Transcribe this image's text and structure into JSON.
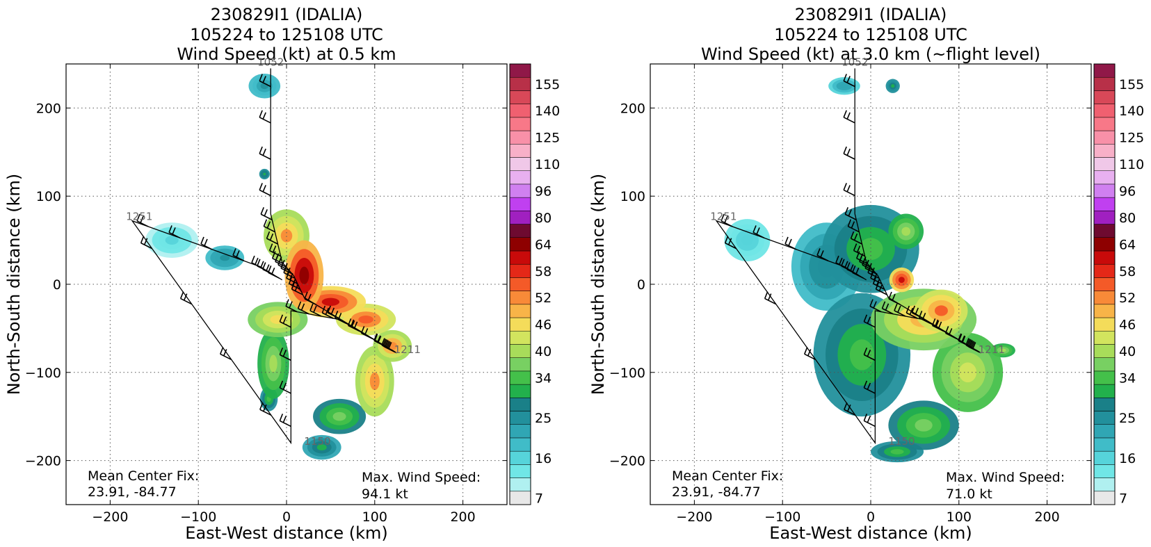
{
  "chart_data": [
    {
      "type": "heatmap",
      "title_lines": [
        "230829I1 (IDALIA)",
        "105224 to 125108 UTC",
        "Wind Speed (kt) at 0.5 km"
      ],
      "xlabel": "East-West distance (km)",
      "ylabel": "North-South distance (km)",
      "xlim": [
        -250,
        250
      ],
      "ylim": [
        -250,
        250
      ],
      "xticks": [
        -200,
        -100,
        0,
        100,
        200
      ],
      "yticks": [
        -200,
        -100,
        0,
        100,
        200
      ],
      "grid": true,
      "track": [
        [
          -18,
          245
        ],
        [
          -18,
          80
        ],
        [
          -5,
          25
        ],
        [
          8,
          10
        ],
        [
          20,
          -15
        ],
        [
          125,
          -78
        ],
        [
          120,
          -75
        ],
        [
          60,
          -40
        ],
        [
          5,
          -30
        ],
        [
          5,
          -180
        ],
        [
          -175,
          72
        ],
        [
          -30,
          20
        ],
        [
          -5,
          5
        ]
      ],
      "time_labels": [
        {
          "text": "1052",
          "x": -33,
          "y": 248
        },
        {
          "text": "1251",
          "x": -182,
          "y": 73
        },
        {
          "text": "1211",
          "x": 122,
          "y": -78
        },
        {
          "text": "1150",
          "x": 20,
          "y": -182
        }
      ],
      "annotations": {
        "center_label": "Mean Center Fix:",
        "center_value": "23.91, -84.77",
        "max_label": "Max. Wind Speed:",
        "max_value": "94.1 kt"
      },
      "wind_blobs": [
        {
          "x": -130,
          "y": 50,
          "rx": 30,
          "ry": 20,
          "v": 18
        },
        {
          "x": -70,
          "y": 30,
          "rx": 22,
          "ry": 14,
          "v": 28
        },
        {
          "x": -25,
          "y": 225,
          "rx": 18,
          "ry": 14,
          "v": 27
        },
        {
          "x": -25,
          "y": 125,
          "rx": 6,
          "ry": 6,
          "v": 36
        },
        {
          "x": 0,
          "y": 55,
          "rx": 26,
          "ry": 30,
          "v": 56
        },
        {
          "x": 20,
          "y": 10,
          "rx": 22,
          "ry": 40,
          "v": 72
        },
        {
          "x": 50,
          "y": -20,
          "rx": 40,
          "ry": 18,
          "v": 66
        },
        {
          "x": 90,
          "y": -40,
          "rx": 34,
          "ry": 18,
          "v": 62
        },
        {
          "x": 120,
          "y": -70,
          "rx": 22,
          "ry": 18,
          "v": 58
        },
        {
          "x": -10,
          "y": -40,
          "rx": 34,
          "ry": 20,
          "v": 52
        },
        {
          "x": -15,
          "y": -90,
          "rx": 18,
          "ry": 40,
          "v": 44
        },
        {
          "x": 100,
          "y": -110,
          "rx": 22,
          "ry": 40,
          "v": 56
        },
        {
          "x": 60,
          "y": -150,
          "rx": 30,
          "ry": 20,
          "v": 42
        },
        {
          "x": 40,
          "y": -185,
          "rx": 22,
          "ry": 14,
          "v": 34
        },
        {
          "x": -20,
          "y": -130,
          "rx": 10,
          "ry": 14,
          "v": 37
        }
      ]
    },
    {
      "type": "heatmap",
      "title_lines": [
        "230829I1 (IDALIA)",
        "105224 to 125108 UTC",
        "Wind Speed (kt) at 3.0 km (~flight level)"
      ],
      "xlabel": "East-West distance (km)",
      "ylabel": "North-South distance (km)",
      "xlim": [
        -250,
        250
      ],
      "ylim": [
        -250,
        250
      ],
      "xticks": [
        -200,
        -100,
        0,
        100,
        200
      ],
      "yticks": [
        -200,
        -100,
        0,
        100,
        200
      ],
      "grid": true,
      "track": [
        [
          -18,
          245
        ],
        [
          -18,
          80
        ],
        [
          -5,
          25
        ],
        [
          8,
          10
        ],
        [
          20,
          -15
        ],
        [
          125,
          -78
        ],
        [
          120,
          -75
        ],
        [
          60,
          -40
        ],
        [
          5,
          -30
        ],
        [
          5,
          -180
        ],
        [
          -175,
          72
        ],
        [
          -30,
          20
        ],
        [
          -5,
          5
        ]
      ],
      "time_labels": [
        {
          "text": "1052",
          "x": -33,
          "y": 248
        },
        {
          "text": "1251",
          "x": -182,
          "y": 73
        },
        {
          "text": "1211",
          "x": 122,
          "y": -78
        },
        {
          "text": "1150",
          "x": 20,
          "y": -182
        }
      ],
      "annotations": {
        "center_label": "Mean Center Fix:",
        "center_value": "23.91, -84.77",
        "max_label": "Max. Wind Speed:",
        "max_value": "71.0 kt"
      },
      "wind_blobs": [
        {
          "x": -140,
          "y": 50,
          "rx": 26,
          "ry": 24,
          "v": 20
        },
        {
          "x": -30,
          "y": 225,
          "rx": 18,
          "ry": 10,
          "v": 26
        },
        {
          "x": 25,
          "y": 225,
          "rx": 8,
          "ry": 8,
          "v": 35
        },
        {
          "x": -50,
          "y": 20,
          "rx": 40,
          "ry": 50,
          "v": 30
        },
        {
          "x": 0,
          "y": 40,
          "rx": 55,
          "ry": 50,
          "v": 38
        },
        {
          "x": 40,
          "y": 60,
          "rx": 20,
          "ry": 20,
          "v": 45
        },
        {
          "x": -10,
          "y": -80,
          "rx": 55,
          "ry": 70,
          "v": 38
        },
        {
          "x": 60,
          "y": -40,
          "rx": 60,
          "ry": 35,
          "v": 54
        },
        {
          "x": 80,
          "y": -30,
          "rx": 30,
          "ry": 24,
          "v": 60
        },
        {
          "x": 35,
          "y": 5,
          "rx": 14,
          "ry": 14,
          "v": 66
        },
        {
          "x": 110,
          "y": -100,
          "rx": 40,
          "ry": 45,
          "v": 48
        },
        {
          "x": 60,
          "y": -160,
          "rx": 40,
          "ry": 28,
          "v": 42
        },
        {
          "x": 30,
          "y": -190,
          "rx": 30,
          "ry": 12,
          "v": 38
        },
        {
          "x": 150,
          "y": -75,
          "rx": 14,
          "ry": 8,
          "v": 44
        }
      ]
    }
  ],
  "colorbar": {
    "levels": [
      7,
      10,
      13,
      16,
      19,
      22,
      25,
      28,
      31,
      34,
      37,
      40,
      43,
      46,
      49,
      52,
      55,
      58,
      61,
      64,
      72,
      80,
      88,
      96,
      103,
      110,
      118,
      125,
      133,
      140,
      148,
      155,
      163
    ],
    "tick_labels": [
      "7",
      "16",
      "25",
      "34",
      "40",
      "46",
      "52",
      "58",
      "64",
      "80",
      "96",
      "110",
      "125",
      "140",
      "155"
    ],
    "colors": [
      "#e8e8e8",
      "#b0f0f0",
      "#70e6e6",
      "#56d4da",
      "#40bcc8",
      "#30a6b4",
      "#22909c",
      "#1a8088",
      "#22b04c",
      "#44c04a",
      "#78d062",
      "#a8dc5a",
      "#d2e45e",
      "#f4dc5a",
      "#f8b448",
      "#f88a38",
      "#f45a28",
      "#e42818",
      "#c80a0a",
      "#8e0000",
      "#6e0a30",
      "#a020c0",
      "#c040f0",
      "#d080f0",
      "#e8b0f0",
      "#f0c8e8",
      "#f8b0c8",
      "#f890a8",
      "#f87888",
      "#f06070",
      "#d84858",
      "#b83048",
      "#901848"
    ]
  }
}
